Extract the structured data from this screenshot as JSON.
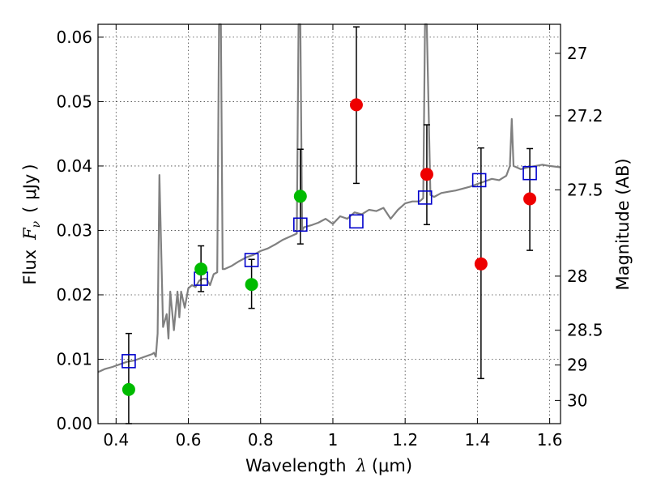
{
  "chart_data": {
    "type": "scatter",
    "xlabel": "Wavelength  λ (μm)",
    "ylabel": "Flux  F_ν  ( μJy )",
    "ylabel_parts": {
      "prefix": "Flux",
      "symbol": "F",
      "subscript": "ν",
      "unit_open": "(",
      "unit": "μJy",
      "unit_close": ")"
    },
    "xlabel_parts": {
      "prefix": "Wavelength",
      "symbol": "λ",
      "unit": "(μm)"
    },
    "y2label": "Magnitude (AB)",
    "xlim": [
      0.35,
      1.63
    ],
    "ylim": [
      0.0,
      0.062
    ],
    "grid": true,
    "x_ticks": [
      {
        "value": 0.4,
        "label": "0.4"
      },
      {
        "value": 0.6,
        "label": "0.6"
      },
      {
        "value": 0.8,
        "label": "0.8"
      },
      {
        "value": 1.0,
        "label": "1"
      },
      {
        "value": 1.2,
        "label": "1.2"
      },
      {
        "value": 1.4,
        "label": "1.4"
      },
      {
        "value": 1.6,
        "label": "1.6"
      }
    ],
    "y_ticks": [
      {
        "value": 0.0,
        "label": "0.00"
      },
      {
        "value": 0.01,
        "label": "0.01"
      },
      {
        "value": 0.02,
        "label": "0.02"
      },
      {
        "value": 0.03,
        "label": "0.03"
      },
      {
        "value": 0.04,
        "label": "0.04"
      },
      {
        "value": 0.05,
        "label": "0.05"
      },
      {
        "value": 0.06,
        "label": "0.06"
      }
    ],
    "y2_ticks": [
      {
        "flux": 0.0575,
        "label": "27"
      },
      {
        "flux": 0.0478,
        "label": "27.2"
      },
      {
        "flux": 0.0363,
        "label": "27.5"
      },
      {
        "flux": 0.0229,
        "label": "28"
      },
      {
        "flux": 0.0145,
        "label": "28.5"
      },
      {
        "flux": 0.0091,
        "label": "29"
      },
      {
        "flux": 0.0036,
        "label": "30"
      }
    ],
    "series": [
      {
        "kind": "line",
        "color": "#808080",
        "x": [
          0.35,
          0.37,
          0.39,
          0.41,
          0.43,
          0.45,
          0.47,
          0.49,
          0.5,
          0.505,
          0.51,
          0.515,
          0.52,
          0.53,
          0.54,
          0.545,
          0.55,
          0.56,
          0.57,
          0.575,
          0.58,
          0.59,
          0.6,
          0.61,
          0.62,
          0.63,
          0.64,
          0.65,
          0.66,
          0.67,
          0.68,
          0.685,
          0.69,
          0.695,
          0.7,
          0.72,
          0.74,
          0.76,
          0.78,
          0.8,
          0.82,
          0.84,
          0.86,
          0.88,
          0.9,
          0.905,
          0.91,
          0.915,
          0.92,
          0.94,
          0.96,
          0.98,
          1.0,
          1.02,
          1.04,
          1.06,
          1.08,
          1.1,
          1.12,
          1.14,
          1.16,
          1.18,
          1.2,
          1.22,
          1.24,
          1.25,
          1.255,
          1.26,
          1.27,
          1.28,
          1.3,
          1.32,
          1.34,
          1.36,
          1.38,
          1.4,
          1.42,
          1.44,
          1.46,
          1.48,
          1.49,
          1.495,
          1.5,
          1.52,
          1.54,
          1.56,
          1.58,
          1.6,
          1.63
        ],
        "y": [
          0.008,
          0.0085,
          0.0088,
          0.0092,
          0.0096,
          0.0098,
          0.0102,
          0.0106,
          0.0108,
          0.011,
          0.0104,
          0.014,
          0.0386,
          0.015,
          0.017,
          0.0132,
          0.0205,
          0.0145,
          0.0205,
          0.0165,
          0.0205,
          0.018,
          0.021,
          0.0215,
          0.0212,
          0.0222,
          0.0225,
          0.0225,
          0.0215,
          0.0232,
          0.0235,
          0.062,
          0.062,
          0.024,
          0.024,
          0.0245,
          0.0252,
          0.0258,
          0.0262,
          0.0268,
          0.0272,
          0.0278,
          0.0285,
          0.029,
          0.0295,
          0.062,
          0.062,
          0.03,
          0.0305,
          0.0308,
          0.0312,
          0.0318,
          0.031,
          0.0322,
          0.0318,
          0.0328,
          0.0325,
          0.0332,
          0.033,
          0.0335,
          0.0318,
          0.0332,
          0.0342,
          0.0345,
          0.0345,
          0.035,
          0.062,
          0.062,
          0.0355,
          0.0352,
          0.0358,
          0.036,
          0.0362,
          0.0365,
          0.0368,
          0.0372,
          0.0376,
          0.038,
          0.0378,
          0.0385,
          0.04,
          0.0473,
          0.04,
          0.0395,
          0.0398,
          0.04,
          0.0402,
          0.04,
          0.0398
        ]
      },
      {
        "kind": "open-square",
        "color": "#0000cc",
        "x": [
          0.435,
          0.635,
          0.775,
          0.91,
          1.065,
          1.255,
          1.405,
          1.545
        ],
        "y": [
          0.0097,
          0.0225,
          0.0254,
          0.0309,
          0.0314,
          0.0351,
          0.0378,
          0.0389
        ]
      },
      {
        "kind": "filled-circle",
        "color": "#00bb00",
        "x": [
          0.435,
          0.635,
          0.775,
          0.91
        ],
        "y": [
          0.0053,
          0.024,
          0.0216,
          0.0353
        ],
        "yerr_low": [
          0.0053,
          0.0035,
          0.0037,
          0.0074
        ],
        "yerr_high": [
          0.0087,
          0.0036,
          0.0039,
          0.0073
        ]
      },
      {
        "kind": "filled-circle",
        "color": "#ee0000",
        "x": [
          1.065,
          1.26,
          1.41,
          1.545
        ],
        "y": [
          0.0495,
          0.0387,
          0.0248,
          0.0349
        ],
        "yerr_low": [
          0.0122,
          0.0078,
          0.0178,
          0.008
        ],
        "yerr_high": [
          0.0121,
          0.0077,
          0.018,
          0.0078
        ]
      }
    ]
  }
}
